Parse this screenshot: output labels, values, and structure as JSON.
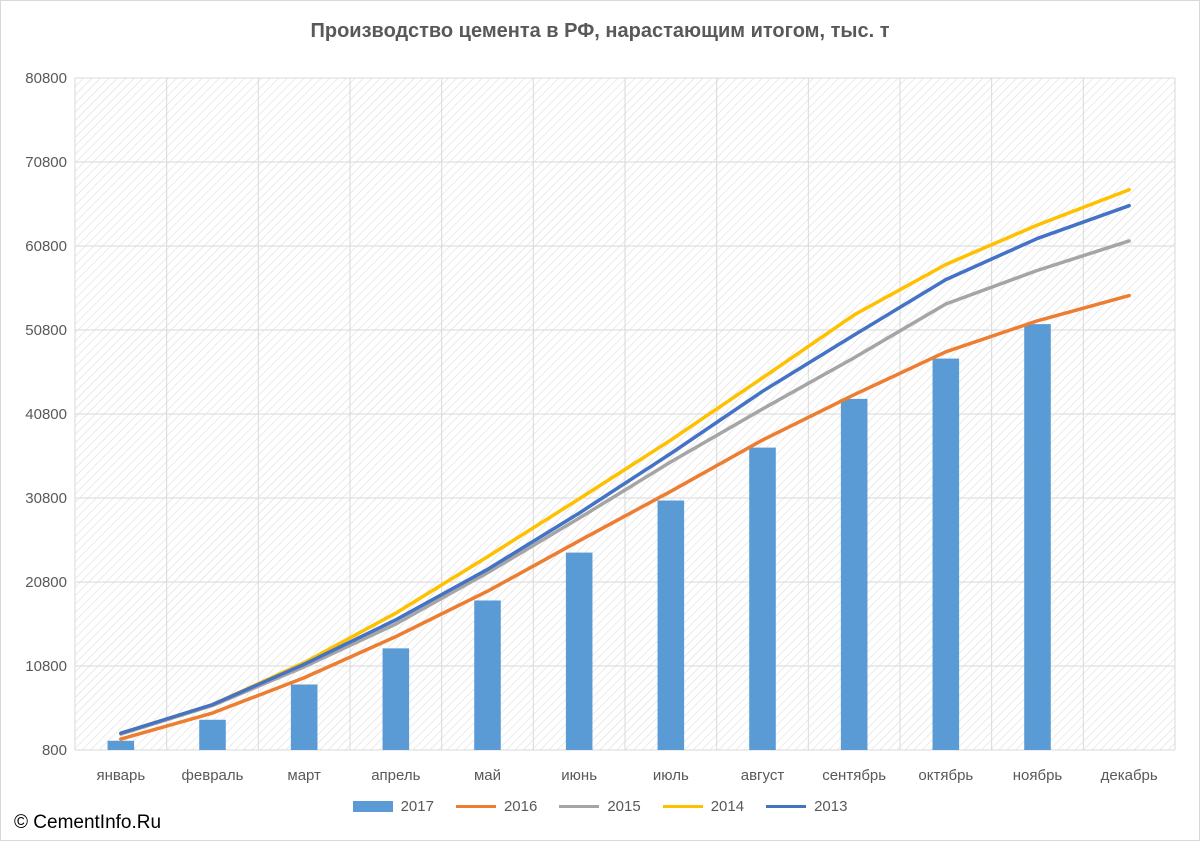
{
  "page": {
    "copyright": "© CementInfo.Ru"
  },
  "chart_data": {
    "type": "bar",
    "title": "Производство цемента в РФ, нарастающим итогом, тыс. т",
    "categories": [
      "январь",
      "февраль",
      "март",
      "апрель",
      "май",
      "июнь",
      "июль",
      "август",
      "сентябрь",
      "октябрь",
      "ноябрь",
      "декабрь"
    ],
    "ylim": [
      800,
      80800
    ],
    "yticks": [
      "800",
      "10800",
      "20800",
      "30800",
      "40800",
      "50800",
      "60800",
      "70800",
      "80800"
    ],
    "grid": true,
    "legend_position": "bottom",
    "series": [
      {
        "name": "2017",
        "kind": "bar",
        "color": "#5b9bd5",
        "values": [
          1900,
          4400,
          8600,
          12900,
          18600,
          24300,
          30500,
          36800,
          42600,
          47400,
          51500,
          null
        ]
      },
      {
        "name": "2016",
        "kind": "line",
        "color": "#ed7d31",
        "values": [
          2100,
          5200,
          9400,
          14300,
          19700,
          25700,
          31600,
          37700,
          43100,
          48200,
          51900,
          54900
        ]
      },
      {
        "name": "2015",
        "kind": "line",
        "color": "#a5a5a5",
        "values": [
          2700,
          6100,
          10700,
          15800,
          21900,
          28400,
          35100,
          41400,
          47500,
          53900,
          57900,
          61400
        ]
      },
      {
        "name": "2014",
        "kind": "line",
        "color": "#ffc000",
        "values": [
          2800,
          6200,
          11200,
          17100,
          23800,
          30700,
          37700,
          45100,
          52600,
          58600,
          63300,
          67500
        ]
      },
      {
        "name": "2013",
        "kind": "line",
        "color": "#4472c4",
        "values": [
          2800,
          6200,
          11000,
          16300,
          22300,
          29000,
          36100,
          43500,
          50200,
          56800,
          61700,
          65600
        ]
      }
    ]
  }
}
